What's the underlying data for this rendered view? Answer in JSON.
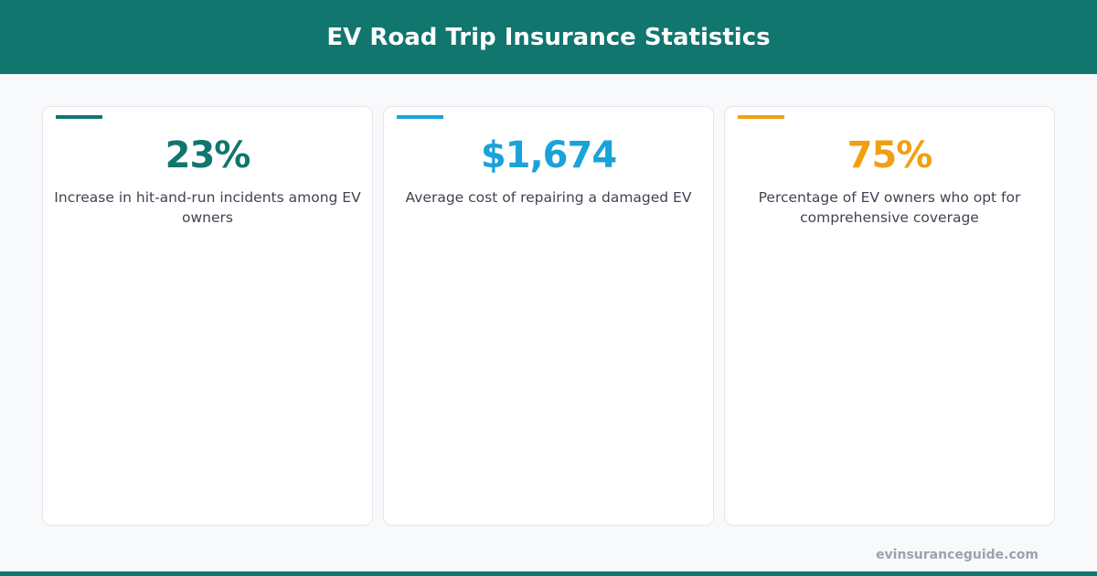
{
  "header": {
    "title": "EV Road Trip Insurance Statistics"
  },
  "cards": [
    {
      "value": "23%",
      "description": "Increase in hit-and-run incidents among EV owners",
      "color": "#11766d"
    },
    {
      "value": "$1,674",
      "description": "Average cost of repairing a damaged EV",
      "color": "#19a3da"
    },
    {
      "value": "75%",
      "description": "Percentage of EV owners who opt for comprehensive coverage",
      "color": "#f19f12"
    }
  ],
  "footer": {
    "site": "evinsuranceguide.com"
  }
}
